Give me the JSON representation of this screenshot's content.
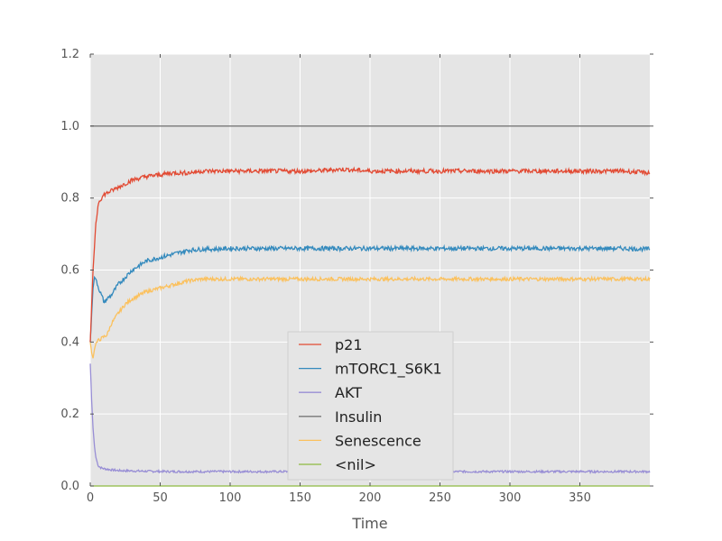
{
  "chart_data": {
    "type": "line",
    "title": "",
    "xlabel": "Time",
    "ylabel": "",
    "xlim": [
      0,
      400
    ],
    "ylim": [
      0.0,
      1.2
    ],
    "xticks": [
      0,
      50,
      100,
      150,
      200,
      250,
      300,
      350
    ],
    "yticks": [
      0.0,
      0.2,
      0.4,
      0.6,
      0.8,
      1.0,
      1.2
    ],
    "xtick_labels": [
      "0",
      "50",
      "100",
      "150",
      "200",
      "250",
      "300",
      "350"
    ],
    "ytick_labels": [
      "0.0",
      "0.2",
      "0.4",
      "0.6",
      "0.8",
      "1.0",
      "1.2"
    ],
    "grid": true,
    "legend_position": "lower-center",
    "series": [
      {
        "name": "p21",
        "color": "#E24A33",
        "x": [
          0,
          2,
          4,
          6,
          8,
          10,
          15,
          20,
          25,
          30,
          40,
          50,
          60,
          70,
          80,
          90,
          100,
          120,
          140,
          160,
          180,
          200,
          220,
          240,
          260,
          280,
          300,
          320,
          340,
          360,
          380,
          400
        ],
        "y": [
          0.4,
          0.6,
          0.73,
          0.79,
          0.8,
          0.81,
          0.82,
          0.83,
          0.84,
          0.85,
          0.86,
          0.865,
          0.87,
          0.87,
          0.875,
          0.875,
          0.875,
          0.875,
          0.875,
          0.875,
          0.88,
          0.875,
          0.875,
          0.875,
          0.875,
          0.875,
          0.875,
          0.875,
          0.875,
          0.875,
          0.875,
          0.87
        ]
      },
      {
        "name": "mTORC1_S6K1",
        "color": "#348ABD",
        "x": [
          0,
          2,
          3,
          4,
          6,
          8,
          10,
          12,
          15,
          20,
          25,
          30,
          40,
          50,
          60,
          70,
          80,
          90,
          100,
          120,
          140,
          160,
          180,
          200,
          220,
          240,
          260,
          280,
          300,
          320,
          340,
          360,
          380,
          400
        ],
        "y": [
          0.4,
          0.55,
          0.58,
          0.575,
          0.55,
          0.53,
          0.51,
          0.52,
          0.53,
          0.56,
          0.58,
          0.6,
          0.625,
          0.635,
          0.645,
          0.655,
          0.658,
          0.658,
          0.66,
          0.66,
          0.66,
          0.66,
          0.66,
          0.66,
          0.66,
          0.66,
          0.66,
          0.66,
          0.66,
          0.66,
          0.66,
          0.66,
          0.66,
          0.658
        ]
      },
      {
        "name": "AKT",
        "color": "#988ED5",
        "x": [
          0,
          1,
          2,
          3,
          4,
          5,
          6,
          8,
          10,
          15,
          20,
          30,
          40,
          60,
          80,
          100,
          150,
          200,
          250,
          300,
          350,
          400
        ],
        "y": [
          0.34,
          0.24,
          0.16,
          0.11,
          0.08,
          0.065,
          0.055,
          0.05,
          0.048,
          0.045,
          0.043,
          0.042,
          0.041,
          0.04,
          0.04,
          0.04,
          0.04,
          0.04,
          0.04,
          0.04,
          0.04,
          0.04
        ]
      },
      {
        "name": "Insulin",
        "color": "#777777",
        "x": [
          0,
          400
        ],
        "y": [
          1.0,
          1.0
        ]
      },
      {
        "name": "Senescence",
        "color": "#FBC15E",
        "x": [
          0,
          1,
          2,
          3,
          4,
          5,
          6,
          8,
          10,
          12,
          15,
          20,
          25,
          30,
          40,
          50,
          60,
          70,
          80,
          90,
          100,
          120,
          140,
          160,
          180,
          200,
          220,
          240,
          260,
          280,
          300,
          320,
          340,
          360,
          380,
          400
        ],
        "y": [
          0.4,
          0.37,
          0.355,
          0.38,
          0.395,
          0.4,
          0.405,
          0.41,
          0.415,
          0.42,
          0.45,
          0.48,
          0.505,
          0.52,
          0.54,
          0.55,
          0.56,
          0.57,
          0.575,
          0.575,
          0.575,
          0.575,
          0.575,
          0.575,
          0.575,
          0.575,
          0.575,
          0.575,
          0.575,
          0.575,
          0.575,
          0.575,
          0.575,
          0.575,
          0.575,
          0.575
        ]
      },
      {
        "name": "<nil>",
        "color": "#8EBA42",
        "x": [
          0,
          400
        ],
        "y": [
          0.0,
          0.0
        ]
      }
    ]
  }
}
